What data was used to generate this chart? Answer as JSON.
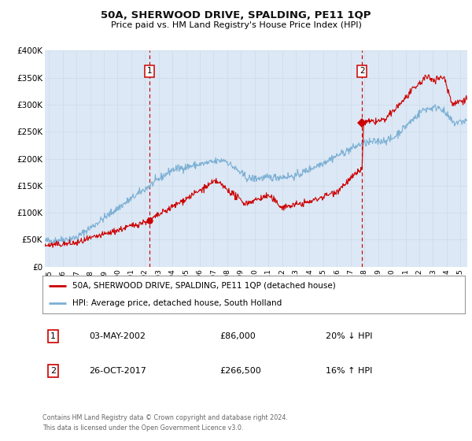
{
  "title": "50A, SHERWOOD DRIVE, SPALDING, PE11 1QP",
  "subtitle": "Price paid vs. HM Land Registry's House Price Index (HPI)",
  "ylim": [
    0,
    400000
  ],
  "xlim_start": 1994.7,
  "xlim_end": 2025.5,
  "yticks": [
    0,
    50000,
    100000,
    150000,
    200000,
    250000,
    300000,
    350000,
    400000
  ],
  "ytick_labels": [
    "£0",
    "£50K",
    "£100K",
    "£150K",
    "£200K",
    "£250K",
    "£300K",
    "£350K",
    "£400K"
  ],
  "xticks": [
    1995,
    1996,
    1997,
    1998,
    1999,
    2000,
    2001,
    2002,
    2003,
    2004,
    2005,
    2006,
    2007,
    2008,
    2009,
    2010,
    2011,
    2012,
    2013,
    2014,
    2015,
    2016,
    2017,
    2018,
    2019,
    2020,
    2021,
    2022,
    2023,
    2024,
    2025
  ],
  "sale1_x": 2002.34,
  "sale1_y": 86000,
  "sale2_x": 2017.82,
  "sale2_y": 266500,
  "red_color": "#cc0000",
  "blue_color": "#7bafd4",
  "bg_color": "#dce8f5",
  "grid_color": "#ffffff",
  "legend_label_red": "50A, SHERWOOD DRIVE, SPALDING, PE11 1QP (detached house)",
  "legend_label_blue": "HPI: Average price, detached house, South Holland",
  "sale1_date": "03-MAY-2002",
  "sale1_price": "£86,000",
  "sale1_hpi": "20% ↓ HPI",
  "sale2_date": "26-OCT-2017",
  "sale2_price": "£266,500",
  "sale2_hpi": "16% ↑ HPI",
  "footer_line1": "Contains HM Land Registry data © Crown copyright and database right 2024.",
  "footer_line2": "This data is licensed under the Open Government Licence v3.0."
}
